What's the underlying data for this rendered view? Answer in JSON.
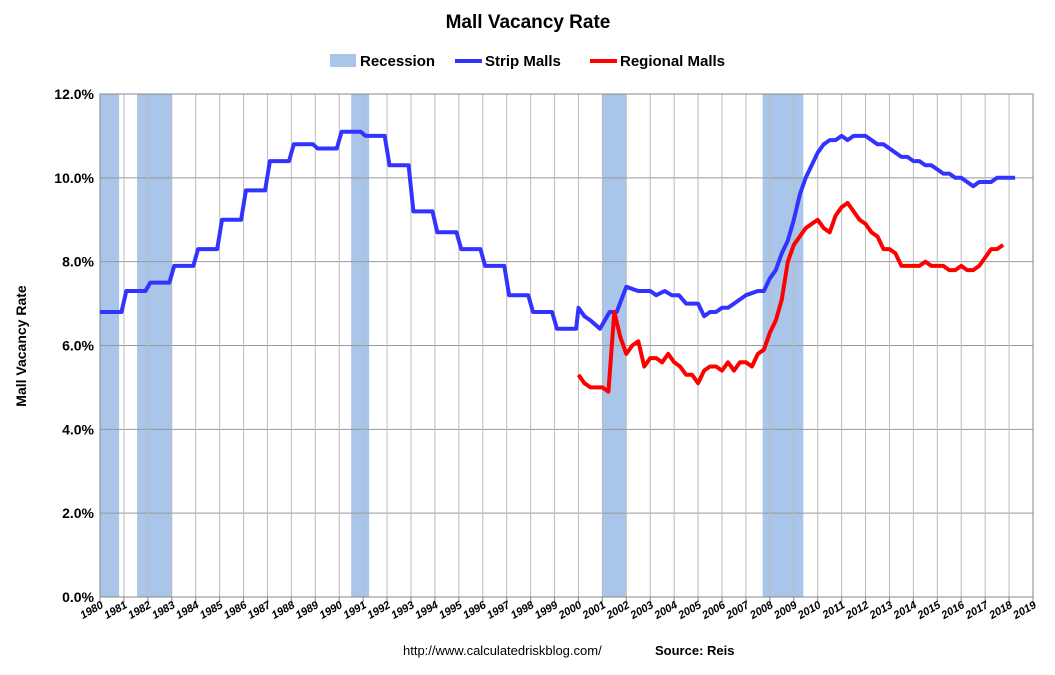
{
  "chart_data": {
    "type": "line",
    "title": "Mall Vacancy Rate",
    "y_label": "Mall Vacancy Rate",
    "source_url": "http://www.calculatedriskblog.com/",
    "source": "Source: Reis",
    "xlim": [
      1980,
      2019
    ],
    "xticks": [
      1980,
      1981,
      1982,
      1983,
      1984,
      1985,
      1986,
      1987,
      1988,
      1989,
      1990,
      1991,
      1992,
      1993,
      1994,
      1995,
      1996,
      1997,
      1998,
      1999,
      2000,
      2001,
      2002,
      2003,
      2004,
      2005,
      2006,
      2007,
      2008,
      2009,
      2010,
      2011,
      2012,
      2013,
      2014,
      2015,
      2016,
      2017,
      2018,
      2019
    ],
    "ylim": [
      0,
      12
    ],
    "yticks": [
      {
        "value": 0,
        "label": "0.0%"
      },
      {
        "value": 2,
        "label": "2.0%"
      },
      {
        "value": 4,
        "label": "4.0%"
      },
      {
        "value": 6,
        "label": "6.0%"
      },
      {
        "value": 8,
        "label": "8.0%"
      },
      {
        "value": 10,
        "label": "10.0%"
      },
      {
        "value": 12,
        "label": "12.0%"
      }
    ],
    "grid": true,
    "recessions": {
      "name": "Recession",
      "color": "#a9c5ea",
      "ranges": [
        [
          1980.0,
          1980.8
        ],
        [
          1981.55,
          1983.0
        ],
        [
          1990.5,
          1991.25
        ],
        [
          2001.0,
          2002.0
        ],
        [
          2007.7,
          2009.4
        ]
      ]
    },
    "series": [
      {
        "name": "Strip Malls",
        "color": "#3333ff",
        "x": [
          1980.0,
          1980.9,
          1981.1,
          1981.9,
          1982.1,
          1982.9,
          1983.1,
          1983.9,
          1984.1,
          1984.9,
          1985.1,
          1985.9,
          1986.1,
          1986.9,
          1987.1,
          1987.9,
          1988.1,
          1988.9,
          1989.1,
          1989.9,
          1990.1,
          1990.9,
          1991.1,
          1991.9,
          1992.1,
          1992.9,
          1993.1,
          1993.9,
          1994.1,
          1994.9,
          1995.1,
          1995.9,
          1996.1,
          1996.9,
          1997.1,
          1997.9,
          1998.1,
          1998.9,
          1999.1,
          1999.9,
          2000.0,
          2000.25,
          2000.5,
          2000.9,
          2001.3,
          2001.6,
          2002.0,
          2002.5,
          2003.0,
          2003.25,
          2003.6,
          2003.9,
          2004.2,
          2004.5,
          2005.0,
          2005.25,
          2005.5,
          2005.75,
          2006.0,
          2006.25,
          2006.5,
          2007.0,
          2007.5,
          2007.75,
          2008.0,
          2008.25,
          2008.5,
          2008.75,
          2009.0,
          2009.25,
          2009.5,
          2009.75,
          2010.0,
          2010.25,
          2010.5,
          2010.75,
          2011.0,
          2011.25,
          2011.5,
          2012.0,
          2012.25,
          2012.5,
          2012.75,
          2013.0,
          2013.5,
          2013.75,
          2014.0,
          2014.25,
          2014.5,
          2014.75,
          2015.0,
          2015.25,
          2015.5,
          2015.75,
          2016.0,
          2016.25,
          2016.5,
          2016.75,
          2017.0,
          2017.25,
          2017.5,
          2018.0,
          2018.25
        ],
        "values": [
          6.8,
          6.8,
          7.3,
          7.3,
          7.5,
          7.5,
          7.9,
          7.9,
          8.3,
          8.3,
          9.0,
          9.0,
          9.7,
          9.7,
          10.4,
          10.4,
          10.8,
          10.8,
          10.7,
          10.7,
          11.1,
          11.1,
          11.0,
          11.0,
          10.3,
          10.3,
          9.2,
          9.2,
          8.7,
          8.7,
          8.3,
          8.3,
          7.9,
          7.9,
          7.2,
          7.2,
          6.8,
          6.8,
          6.4,
          6.4,
          6.9,
          6.7,
          6.6,
          6.4,
          6.8,
          6.8,
          7.4,
          7.3,
          7.3,
          7.2,
          7.3,
          7.2,
          7.2,
          7.0,
          7.0,
          6.7,
          6.8,
          6.8,
          6.9,
          6.9,
          7.0,
          7.2,
          7.3,
          7.3,
          7.6,
          7.8,
          8.2,
          8.5,
          9.0,
          9.6,
          10.0,
          10.3,
          10.6,
          10.8,
          10.9,
          10.9,
          11.0,
          10.9,
          11.0,
          11.0,
          10.9,
          10.8,
          10.8,
          10.7,
          10.5,
          10.5,
          10.4,
          10.4,
          10.3,
          10.3,
          10.2,
          10.1,
          10.1,
          10.0,
          10.0,
          9.9,
          9.8,
          9.9,
          9.9,
          9.9,
          10.0,
          10.0,
          10.0
        ]
      },
      {
        "name": "Regional Malls",
        "color": "#ff0000",
        "x": [
          2000.0,
          2000.25,
          2000.5,
          2000.75,
          2001.0,
          2001.25,
          2001.5,
          2001.75,
          2002.0,
          2002.25,
          2002.5,
          2002.75,
          2003.0,
          2003.25,
          2003.5,
          2003.75,
          2004.0,
          2004.25,
          2004.5,
          2004.75,
          2005.0,
          2005.25,
          2005.5,
          2005.75,
          2006.0,
          2006.25,
          2006.5,
          2006.75,
          2007.0,
          2007.25,
          2007.5,
          2007.75,
          2008.0,
          2008.25,
          2008.5,
          2008.75,
          2009.0,
          2009.25,
          2009.5,
          2009.75,
          2010.0,
          2010.25,
          2010.5,
          2010.75,
          2011.0,
          2011.25,
          2011.5,
          2011.75,
          2012.0,
          2012.25,
          2012.5,
          2012.75,
          2013.0,
          2013.25,
          2013.5,
          2013.75,
          2014.0,
          2014.25,
          2014.5,
          2014.75,
          2015.0,
          2015.25,
          2015.5,
          2015.75,
          2016.0,
          2016.25,
          2016.5,
          2016.75,
          2017.0,
          2017.25,
          2017.5,
          2017.75
        ],
        "values": [
          5.3,
          5.1,
          5.0,
          5.0,
          5.0,
          4.9,
          6.8,
          6.2,
          5.8,
          6.0,
          6.1,
          5.5,
          5.7,
          5.7,
          5.6,
          5.8,
          5.6,
          5.5,
          5.3,
          5.3,
          5.1,
          5.4,
          5.5,
          5.5,
          5.4,
          5.6,
          5.4,
          5.6,
          5.6,
          5.5,
          5.8,
          5.9,
          6.3,
          6.6,
          7.1,
          8.0,
          8.4,
          8.6,
          8.8,
          8.9,
          9.0,
          8.8,
          8.7,
          9.1,
          9.3,
          9.4,
          9.2,
          9.0,
          8.9,
          8.7,
          8.6,
          8.3,
          8.3,
          8.2,
          7.9,
          7.9,
          7.9,
          7.9,
          8.0,
          7.9,
          7.9,
          7.9,
          7.8,
          7.8,
          7.9,
          7.8,
          7.8,
          7.9,
          8.1,
          8.3,
          8.3,
          8.4
        ]
      }
    ]
  }
}
